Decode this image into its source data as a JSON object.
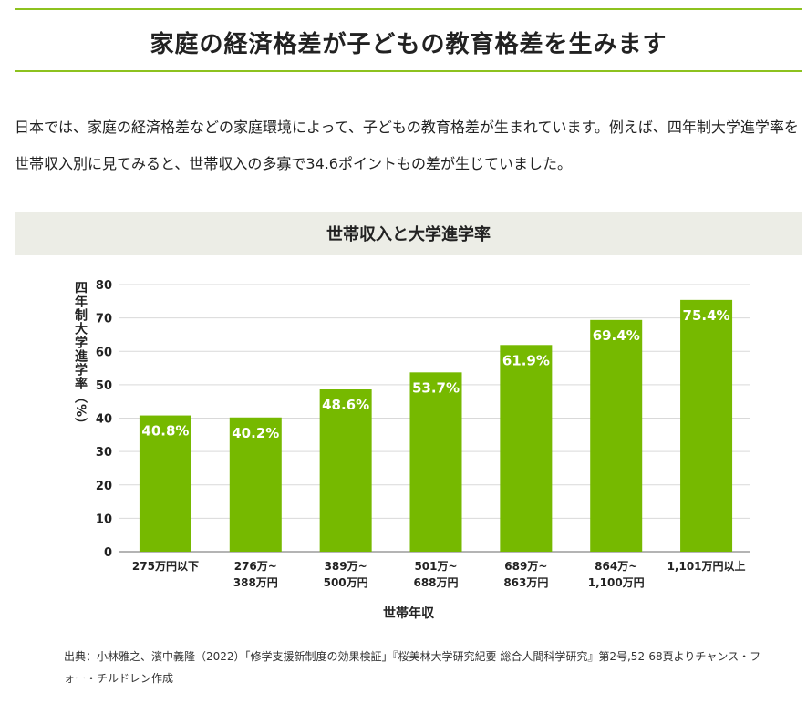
{
  "page": {
    "title": "家庭の経済格差が子どもの教育格差を生みます",
    "intro": "日本では、家庭の経済格差などの家庭環境によって、子どもの教育格差が生まれています。例えば、四年制大学進学率を世帯収入別に見てみると、世帯収入の多寡で34.6ポイントもの差が生じていました。",
    "source": "出典：小林雅之、濱中義隆（2022）「修学支援新制度の効果検証」『桜美林大学研究紀要 総合人間科学研究』第2号,52-68頁よりチャンス・フォー・チルドレン作成"
  },
  "colors": {
    "accent": "#8dc21f",
    "bar": "#76b900",
    "header_bg": "#ecede6",
    "text": "#222222",
    "grid": "#d9d9d9"
  },
  "chart_data": {
    "type": "bar",
    "title": "世帯収入と大学進学率",
    "xlabel": "世帯年収",
    "ylabel": "四年制大学進学率（%）",
    "ylim": [
      0,
      80
    ],
    "yticks": [
      0,
      10,
      20,
      30,
      40,
      50,
      60,
      70,
      80
    ],
    "grid": true,
    "categories": [
      {
        "line1": "275万円以下",
        "line2": ""
      },
      {
        "line1": "276万~",
        "line2": "388万円"
      },
      {
        "line1": "389万~",
        "line2": "500万円"
      },
      {
        "line1": "501万~",
        "line2": "688万円"
      },
      {
        "line1": "689万~",
        "line2": "863万円"
      },
      {
        "line1": "864万~",
        "line2": "1,100万円"
      },
      {
        "line1": "1,101万円以上",
        "line2": ""
      }
    ],
    "values": [
      40.8,
      40.2,
      48.6,
      53.7,
      61.9,
      69.4,
      75.4
    ],
    "data_labels": [
      "40.8%",
      "40.2%",
      "48.6%",
      "53.7%",
      "61.9%",
      "69.4%",
      "75.4%"
    ]
  }
}
